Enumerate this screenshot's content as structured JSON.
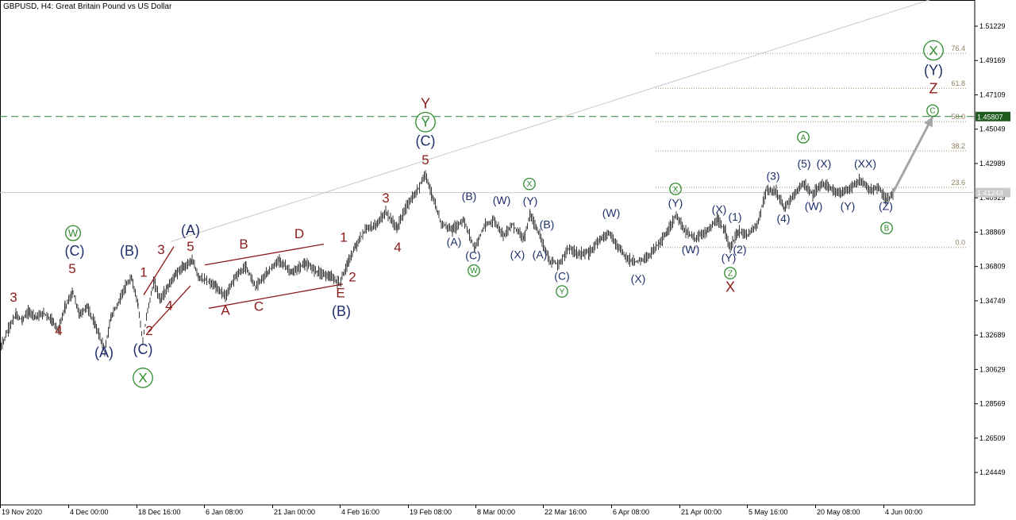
{
  "header": {
    "title": "GBPUSD, H4:  Great Britain Pound vs US Dollar"
  },
  "chart_data": {
    "type": "line",
    "symbol": "GBPUSD",
    "timeframe": "H4",
    "description": "Great Britain Pound vs US Dollar",
    "ylim": [
      1.225,
      1.528
    ],
    "y_ticks": [
      "1.51229",
      "1.49169",
      "1.47109",
      "1.45049",
      "1.42989",
      "1.40929",
      "1.38869",
      "1.36809",
      "1.34749",
      "1.32689",
      "1.30629",
      "1.28569",
      "1.26509",
      "1.24449"
    ],
    "x_ticks": [
      "19 Nov 2020",
      "4 Dec 00:00",
      "18 Dec 16:00",
      "6 Jan 08:00",
      "21 Jan 00:00",
      "4 Feb 16:00",
      "19 Feb 08:00",
      "8 Mar 00:00",
      "22 Mar 16:00",
      "6 Apr 08:00",
      "21 Apr 00:00",
      "5 May 16:00",
      "20 May 08:00",
      "4 Jun 00:00"
    ],
    "current_price_label": "1.41243",
    "current_price": 1.41243,
    "key_level": {
      "label": "1.45807",
      "value": 1.45807,
      "color": "#2e7d32"
    },
    "fibonacci": [
      {
        "label": "0.0",
        "value": 1.3795
      },
      {
        "label": "23.6",
        "value": 1.4155
      },
      {
        "label": "38.2",
        "value": 1.4375
      },
      {
        "label": "50.0",
        "value": 1.455
      },
      {
        "label": "61.8",
        "value": 1.475
      },
      {
        "label": "76.4",
        "value": 1.496
      }
    ],
    "series": [
      {
        "values": [
          [
            0,
            1.3185
          ],
          [
            12,
            1.332
          ],
          [
            20,
            1.339
          ],
          [
            28,
            1.336
          ],
          [
            36,
            1.341
          ],
          [
            46,
            1.338
          ],
          [
            56,
            1.34
          ],
          [
            66,
            1.3355
          ],
          [
            74,
            1.33
          ],
          [
            82,
            1.344
          ],
          [
            92,
            1.3525
          ],
          [
            100,
            1.339
          ],
          [
            110,
            1.344
          ],
          [
            120,
            1.333
          ],
          [
            132,
            1.318
          ],
          [
            140,
            1.338
          ],
          [
            150,
            1.347
          ],
          [
            158,
            1.356
          ],
          [
            166,
            1.361
          ],
          [
            174,
            1.345
          ],
          [
            180,
            1.323
          ],
          [
            186,
            1.342
          ],
          [
            194,
            1.359
          ],
          [
            202,
            1.348
          ],
          [
            212,
            1.356
          ],
          [
            222,
            1.364
          ],
          [
            232,
            1.368
          ],
          [
            242,
            1.372
          ],
          [
            250,
            1.362
          ],
          [
            262,
            1.359
          ],
          [
            272,
            1.356
          ],
          [
            284,
            1.35
          ],
          [
            296,
            1.362
          ],
          [
            310,
            1.368
          ],
          [
            322,
            1.356
          ],
          [
            338,
            1.365
          ],
          [
            352,
            1.372
          ],
          [
            368,
            1.364
          ],
          [
            384,
            1.37
          ],
          [
            400,
            1.365
          ],
          [
            416,
            1.362
          ],
          [
            428,
            1.358
          ],
          [
            438,
            1.37
          ],
          [
            448,
            1.38
          ],
          [
            460,
            1.39
          ],
          [
            474,
            1.393
          ],
          [
            486,
            1.401
          ],
          [
            500,
            1.391
          ],
          [
            512,
            1.404
          ],
          [
            524,
            1.412
          ],
          [
            536,
            1.424
          ],
          [
            544,
            1.411
          ],
          [
            556,
            1.394
          ],
          [
            570,
            1.39
          ],
          [
            584,
            1.396
          ],
          [
            598,
            1.379
          ],
          [
            610,
            1.392
          ],
          [
            622,
            1.396
          ],
          [
            634,
            1.387
          ],
          [
            646,
            1.393
          ],
          [
            660,
            1.385
          ],
          [
            668,
            1.399
          ],
          [
            680,
            1.387
          ],
          [
            692,
            1.372
          ],
          [
            704,
            1.369
          ],
          [
            716,
            1.379
          ],
          [
            728,
            1.376
          ],
          [
            742,
            1.376
          ],
          [
            756,
            1.385
          ],
          [
            768,
            1.388
          ],
          [
            780,
            1.379
          ],
          [
            792,
            1.372
          ],
          [
            804,
            1.371
          ],
          [
            816,
            1.374
          ],
          [
            830,
            1.382
          ],
          [
            840,
            1.388
          ],
          [
            852,
            1.399
          ],
          [
            864,
            1.389
          ],
          [
            876,
            1.385
          ],
          [
            890,
            1.389
          ],
          [
            904,
            1.396
          ],
          [
            914,
            1.389
          ],
          [
            920,
            1.379
          ],
          [
            930,
            1.389
          ],
          [
            942,
            1.387
          ],
          [
            954,
            1.393
          ],
          [
            966,
            1.414
          ],
          [
            978,
            1.413
          ],
          [
            988,
            1.403
          ],
          [
            1000,
            1.411
          ],
          [
            1012,
            1.418
          ],
          [
            1024,
            1.411
          ],
          [
            1036,
            1.418
          ],
          [
            1048,
            1.414
          ],
          [
            1060,
            1.412
          ],
          [
            1072,
            1.415
          ],
          [
            1084,
            1.42
          ],
          [
            1096,
            1.414
          ],
          [
            1108,
            1.415
          ],
          [
            1116,
            1.408
          ],
          [
            1126,
            1.4124
          ]
        ]
      }
    ],
    "trend_lines": [
      {
        "x1": 215,
        "y1": 1.383,
        "x2": 1200,
        "y2": 1.5325,
        "color": "#c8c8c8"
      }
    ],
    "projection_arrow": {
      "x1": 1125,
      "y1": 1.4124,
      "x2": 1175,
      "y2": 1.458,
      "color": "#a6a6a6"
    },
    "annotations": [
      {
        "text": "3",
        "x": 17,
        "y": 1.347,
        "color": "#8b1a1a",
        "size": 17
      },
      {
        "text": "4",
        "x": 74,
        "y": 1.327,
        "color": "#8b1a1a",
        "size": 17
      },
      {
        "text": "5",
        "x": 91,
        "y": 1.364,
        "color": "#8b1a1a",
        "size": 17
      },
      {
        "text": "(C)",
        "x": 94,
        "y": 1.3745,
        "color": "#1f2f6b",
        "size": 18
      },
      {
        "text": "W",
        "x": 92,
        "y": 1.386,
        "color": "#2e8b2e",
        "size": 13,
        "circled": true
      },
      {
        "text": "(A)",
        "x": 131,
        "y": 1.3135,
        "color": "#1f2f6b",
        "size": 18
      },
      {
        "text": "(B)",
        "x": 163,
        "y": 1.3745,
        "color": "#1f2f6b",
        "size": 18
      },
      {
        "text": "1",
        "x": 181,
        "y": 1.362,
        "color": "#8b1a1a",
        "size": 17
      },
      {
        "text": "3",
        "x": 203,
        "y": 1.3755,
        "color": "#8b1a1a",
        "size": 17
      },
      {
        "text": "2",
        "x": 188,
        "y": 1.327,
        "color": "#8b1a1a",
        "size": 17
      },
      {
        "text": "4",
        "x": 213,
        "y": 1.342,
        "color": "#8b1a1a",
        "size": 17
      },
      {
        "text": "(C)",
        "x": 180,
        "y": 1.3155,
        "color": "#1f2f6b",
        "size": 18
      },
      {
        "text": "X",
        "x": 180,
        "y": 1.2985,
        "color": "#2e8b2e",
        "size": 17,
        "circled": true
      },
      {
        "text": "(A)",
        "x": 240,
        "y": 1.387,
        "color": "#1f2f6b",
        "size": 18
      },
      {
        "text": "5",
        "x": 240,
        "y": 1.3775,
        "color": "#8b1a1a",
        "size": 17
      },
      {
        "text": "B",
        "x": 307,
        "y": 1.379,
        "color": "#8b1a1a",
        "size": 17
      },
      {
        "text": "D",
        "x": 377,
        "y": 1.385,
        "color": "#8b1a1a",
        "size": 17
      },
      {
        "text": "A",
        "x": 284,
        "y": 1.339,
        "color": "#8b1a1a",
        "size": 17
      },
      {
        "text": "C",
        "x": 326,
        "y": 1.3415,
        "color": "#8b1a1a",
        "size": 17
      },
      {
        "text": "1",
        "x": 433,
        "y": 1.383,
        "color": "#8b1a1a",
        "size": 17
      },
      {
        "text": "2",
        "x": 444,
        "y": 1.359,
        "color": "#8b1a1a",
        "size": 17
      },
      {
        "text": "E",
        "x": 429,
        "y": 1.3495,
        "color": "#8b1a1a",
        "size": 17
      },
      {
        "text": "(B)",
        "x": 430,
        "y": 1.3385,
        "color": "#1f2f6b",
        "size": 18
      },
      {
        "text": "3",
        "x": 486,
        "y": 1.4065,
        "color": "#8b1a1a",
        "size": 17
      },
      {
        "text": "4",
        "x": 501,
        "y": 1.377,
        "color": "#8b1a1a",
        "size": 17
      },
      {
        "text": "Y",
        "x": 536,
        "y": 1.463,
        "color": "#8b1a1a",
        "size": 18
      },
      {
        "text": "Y",
        "x": 536,
        "y": 1.452,
        "color": "#2e8b2e",
        "size": 17,
        "circled": true
      },
      {
        "text": "(C)",
        "x": 536,
        "y": 1.4405,
        "color": "#1f2f6b",
        "size": 18
      },
      {
        "text": "5",
        "x": 536,
        "y": 1.4295,
        "color": "#8b1a1a",
        "size": 17
      },
      {
        "text": "(B)",
        "x": 591,
        "y": 1.408,
        "color": "#1f2f6b",
        "size": 14
      },
      {
        "text": "(A)",
        "x": 572,
        "y": 1.3805,
        "color": "#1f2f6b",
        "size": 14
      },
      {
        "text": "(C)",
        "x": 596,
        "y": 1.3725,
        "color": "#1f2f6b",
        "size": 14
      },
      {
        "text": "W",
        "x": 597,
        "y": 1.364,
        "color": "#2e8b2e",
        "size": 10,
        "circled": true
      },
      {
        "text": "(W)",
        "x": 632,
        "y": 1.4055,
        "color": "#1f2f6b",
        "size": 14
      },
      {
        "text": "X",
        "x": 667,
        "y": 1.416,
        "color": "#2e8b2e",
        "size": 10,
        "circled": true
      },
      {
        "text": "(Y)",
        "x": 668,
        "y": 1.405,
        "color": "#1f2f6b",
        "size": 14
      },
      {
        "text": "(X)",
        "x": 652,
        "y": 1.373,
        "color": "#1f2f6b",
        "size": 14
      },
      {
        "text": "(B)",
        "x": 689,
        "y": 1.391,
        "color": "#1f2f6b",
        "size": 14
      },
      {
        "text": "(A)",
        "x": 680,
        "y": 1.373,
        "color": "#1f2f6b",
        "size": 14
      },
      {
        "text": "(C)",
        "x": 708,
        "y": 1.36,
        "color": "#1f2f6b",
        "size": 14
      },
      {
        "text": "Y",
        "x": 708,
        "y": 1.3515,
        "color": "#2e8b2e",
        "size": 10,
        "circled": true
      },
      {
        "text": "(W)",
        "x": 770,
        "y": 1.398,
        "color": "#1f2f6b",
        "size": 14
      },
      {
        "text": "(X)",
        "x": 804,
        "y": 1.3585,
        "color": "#1f2f6b",
        "size": 14
      },
      {
        "text": "X",
        "x": 851,
        "y": 1.413,
        "color": "#2e8b2e",
        "size": 10,
        "circled": true
      },
      {
        "text": "(Y)",
        "x": 851,
        "y": 1.404,
        "color": "#1f2f6b",
        "size": 14
      },
      {
        "text": "(W)",
        "x": 870,
        "y": 1.376,
        "color": "#1f2f6b",
        "size": 14
      },
      {
        "text": "(X)",
        "x": 906,
        "y": 1.4,
        "color": "#1f2f6b",
        "size": 14
      },
      {
        "text": "(1)",
        "x": 926,
        "y": 1.3955,
        "color": "#1f2f6b",
        "size": 14
      },
      {
        "text": "(2)",
        "x": 932,
        "y": 1.376,
        "color": "#1f2f6b",
        "size": 14
      },
      {
        "text": "(Y)",
        "x": 918,
        "y": 1.371,
        "color": "#1f2f6b",
        "size": 14
      },
      {
        "text": "Z",
        "x": 920,
        "y": 1.3625,
        "color": "#2e8b2e",
        "size": 10,
        "circled": true
      },
      {
        "text": "X",
        "x": 920,
        "y": 1.353,
        "color": "#8b1a1a",
        "size": 18
      },
      {
        "text": "(3)",
        "x": 974,
        "y": 1.42,
        "color": "#1f2f6b",
        "size": 14
      },
      {
        "text": "(4)",
        "x": 987,
        "y": 1.3945,
        "color": "#1f2f6b",
        "size": 14
      },
      {
        "text": "A",
        "x": 1012,
        "y": 1.444,
        "color": "#2e8b2e",
        "size": 10,
        "circled": true
      },
      {
        "text": "(5)",
        "x": 1013,
        "y": 1.4275,
        "color": "#1f2f6b",
        "size": 14
      },
      {
        "text": "(X)",
        "x": 1038,
        "y": 1.4275,
        "color": "#1f2f6b",
        "size": 14
      },
      {
        "text": "(XX)",
        "x": 1090,
        "y": 1.4275,
        "color": "#1f2f6b",
        "size": 14
      },
      {
        "text": "(W)",
        "x": 1025,
        "y": 1.402,
        "color": "#1f2f6b",
        "size": 14
      },
      {
        "text": "(Y)",
        "x": 1068,
        "y": 1.402,
        "color": "#1f2f6b",
        "size": 14
      },
      {
        "text": "(Z)",
        "x": 1116,
        "y": 1.402,
        "color": "#1f2f6b",
        "size": 14
      },
      {
        "text": "B",
        "x": 1117,
        "y": 1.3895,
        "color": "#2e8b2e",
        "size": 10,
        "circled": true
      },
      {
        "text": "X",
        "x": 1176,
        "y": 1.495,
        "color": "#2e8b2e",
        "size": 17,
        "circled": true
      },
      {
        "text": "(Y)",
        "x": 1176,
        "y": 1.483,
        "color": "#1f2f6b",
        "size": 18
      },
      {
        "text": "Z",
        "x": 1176,
        "y": 1.472,
        "color": "#8b1a1a",
        "size": 18
      },
      {
        "text": "C",
        "x": 1175,
        "y": 1.46,
        "color": "#2e8b2e",
        "size": 10,
        "circled": true
      }
    ],
    "channel_lines": [
      {
        "x1": 258,
        "y1": 1.369,
        "x2": 408,
        "y2": 1.3815,
        "color": "#8b1a1a"
      },
      {
        "x1": 263,
        "y1": 1.343,
        "x2": 432,
        "y2": 1.3575,
        "color": "#8b1a1a"
      },
      {
        "x1": 181,
        "y1": 1.351,
        "x2": 219,
        "y2": 1.38,
        "color": "#8b1a1a"
      },
      {
        "x1": 187,
        "y1": 1.329,
        "x2": 240,
        "y2": 1.3565,
        "color": "#8b1a1a"
      }
    ]
  }
}
